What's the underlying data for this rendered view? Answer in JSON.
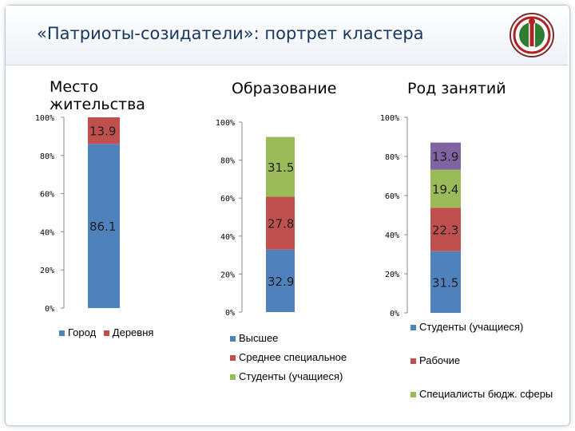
{
  "slide": {
    "title": "«Патриоты-созидатели»: портрет кластера"
  },
  "logo": {
    "name": "emblem-logo"
  },
  "chart_data": [
    {
      "type": "bar",
      "stacked": true,
      "title": "Место жительства",
      "ylim": [
        0,
        100
      ],
      "yticks": [
        "0%",
        "20%",
        "40%",
        "60%",
        "80%",
        "100%"
      ],
      "series": [
        {
          "name": "Город",
          "color": "#4f81bd",
          "value": 86.1,
          "label": "86.1"
        },
        {
          "name": "Деревня",
          "color": "#c0504d",
          "value": 13.9,
          "label": "13.9"
        }
      ]
    },
    {
      "type": "bar",
      "stacked": true,
      "title": "Образование",
      "ylim": [
        0,
        100
      ],
      "yticks": [
        "0%",
        "20%",
        "40%",
        "60%",
        "80%",
        "100%"
      ],
      "series": [
        {
          "name": "Высшее",
          "color": "#4f81bd",
          "value": 32.9,
          "label": "32.9"
        },
        {
          "name": "Среднее специальное",
          "color": "#c0504d",
          "value": 27.8,
          "label": "27.8"
        },
        {
          "name": "Студенты (учащиеся)",
          "color": "#9bbb59",
          "value": 31.5,
          "label": "31.5"
        }
      ]
    },
    {
      "type": "bar",
      "stacked": true,
      "title": "Род занятий",
      "ylim": [
        0,
        100
      ],
      "yticks": [
        "0%",
        "20%",
        "40%",
        "60%",
        "80%",
        "100%"
      ],
      "series": [
        {
          "name": "Студенты (учащиеся)",
          "color": "#4f81bd",
          "value": 31.5,
          "label": "31.5"
        },
        {
          "name": "Рабочие",
          "color": "#c0504d",
          "value": 22.3,
          "label": "22.3"
        },
        {
          "name": "Специалисты бюдж. сферы",
          "color": "#9bbb59",
          "value": 19.4,
          "label": "19.4"
        },
        {
          "name": "",
          "color": "#8064a2",
          "value": 13.9,
          "label": "13.9"
        }
      ]
    }
  ]
}
